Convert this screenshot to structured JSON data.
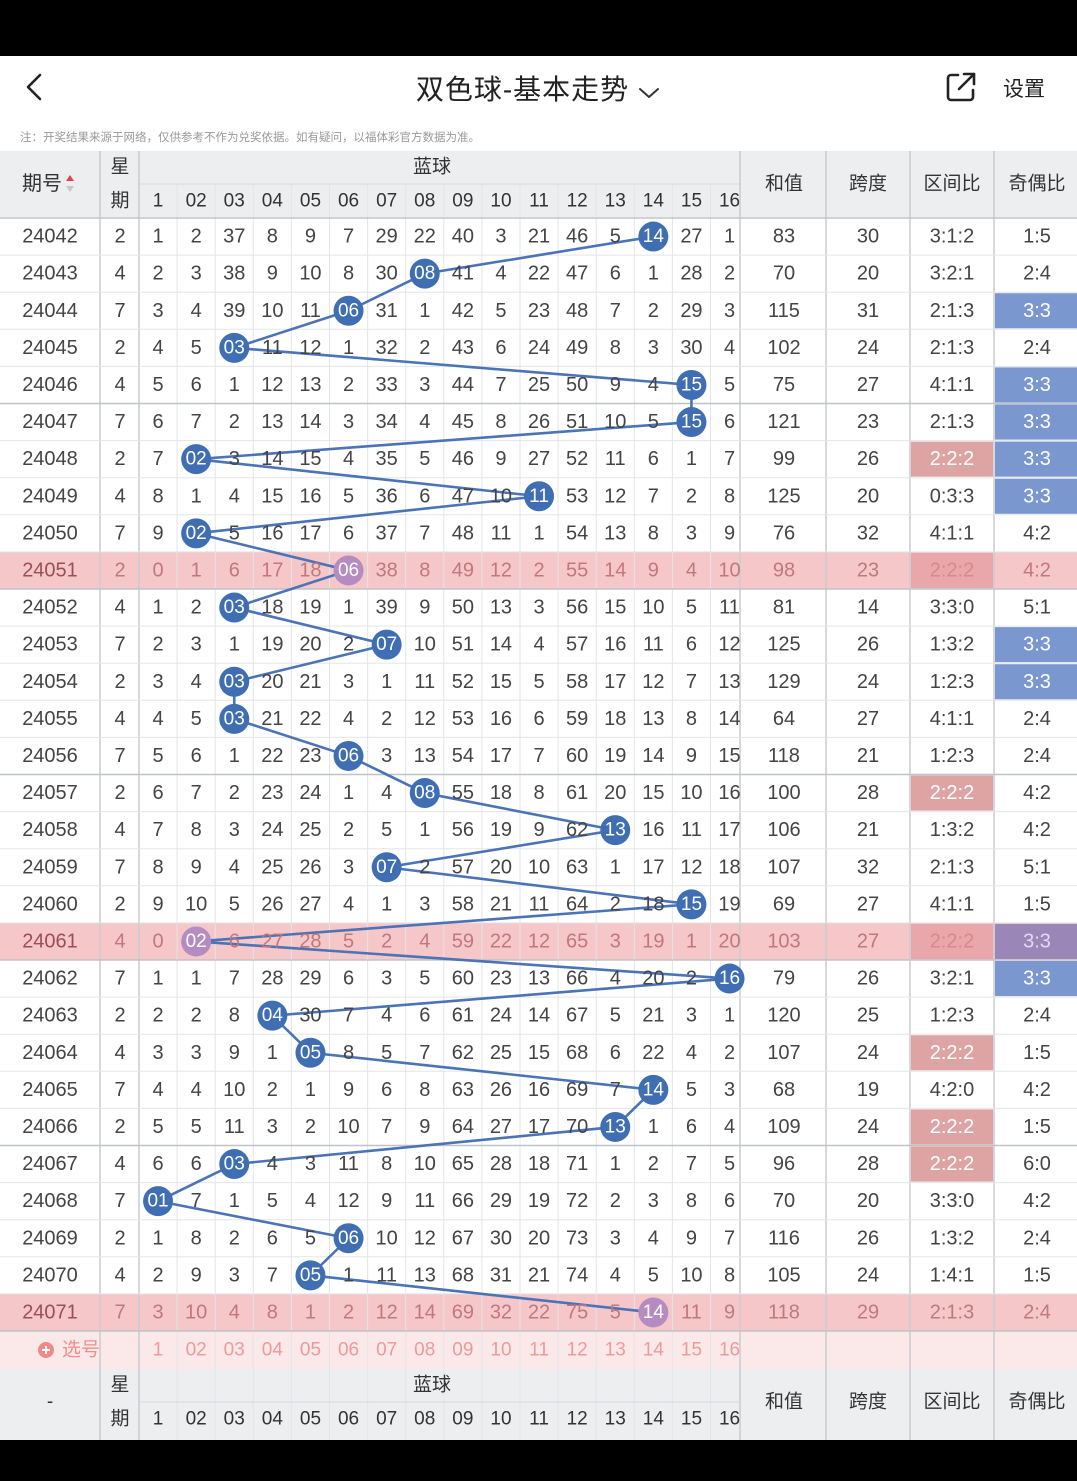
{
  "nav": {
    "title": "双色球-基本走势",
    "settings_label": "设置"
  },
  "note": "注：开奖结果来源于网络，仅供参考不作为兑奖依据。如有疑问，以福体彩官方数据为准。",
  "header": {
    "period": "期号",
    "week_top": "星",
    "week_bottom": "期",
    "blue_title": "蓝球",
    "sum": "和值",
    "span": "跨度",
    "zone": "区间比",
    "oddeven": "奇偶比",
    "nums": [
      "1",
      "02",
      "03",
      "04",
      "05",
      "06",
      "07",
      "08",
      "09",
      "10",
      "11",
      "12",
      "13",
      "14",
      "15",
      "16"
    ]
  },
  "footer_header": {
    "period": "-",
    "week_top": "星",
    "week_bottom": "期",
    "blue_title": "蓝球",
    "sum": "和值",
    "span": "跨度",
    "zone": "区间比",
    "oddeven": "奇偶比"
  },
  "select_label": "选号",
  "select_nums": [
    "1",
    "02",
    "03",
    "04",
    "05",
    "06",
    "07",
    "08",
    "09",
    "10",
    "11",
    "12",
    "13",
    "14",
    "15",
    "16"
  ],
  "colors": {
    "ball": "#3f6eb3",
    "line": "#4a73b8",
    "highlight_row": "#f5c7c9",
    "zone_red": "#dea3a3",
    "oe_blue": "#7b97cf"
  },
  "rows": [
    {
      "p": "24042",
      "w": "2",
      "blue": 14,
      "cells": [
        "1",
        "2",
        "37",
        "8",
        "9",
        "7",
        "29",
        "22",
        "40",
        "3",
        "21",
        "46",
        "5",
        "",
        "27",
        "1"
      ],
      "sum": "83",
      "span": "30",
      "zone": "3:1:2",
      "oe": "1:5"
    },
    {
      "p": "24043",
      "w": "4",
      "blue": 8,
      "cells": [
        "2",
        "3",
        "38",
        "9",
        "10",
        "8",
        "30",
        "",
        "41",
        "4",
        "22",
        "47",
        "6",
        "1",
        "28",
        "2"
      ],
      "sum": "70",
      "span": "20",
      "zone": "3:2:1",
      "oe": "2:4"
    },
    {
      "p": "24044",
      "w": "7",
      "blue": 6,
      "cells": [
        "3",
        "4",
        "39",
        "10",
        "11",
        "",
        "31",
        "1",
        "42",
        "5",
        "23",
        "48",
        "7",
        "2",
        "29",
        "3"
      ],
      "sum": "115",
      "span": "31",
      "zone": "2:1:3",
      "oe": "3:3",
      "oeh": true
    },
    {
      "p": "24045",
      "w": "2",
      "blue": 3,
      "cells": [
        "4",
        "5",
        "",
        "11",
        "12",
        "1",
        "32",
        "2",
        "43",
        "6",
        "24",
        "49",
        "8",
        "3",
        "30",
        "4"
      ],
      "sum": "102",
      "span": "24",
      "zone": "2:1:3",
      "oe": "2:4"
    },
    {
      "p": "24046",
      "w": "4",
      "blue": 15,
      "cells": [
        "5",
        "6",
        "1",
        "12",
        "13",
        "2",
        "33",
        "3",
        "44",
        "7",
        "25",
        "50",
        "9",
        "4",
        "",
        "5"
      ],
      "sum": "75",
      "span": "27",
      "zone": "4:1:1",
      "oe": "3:3",
      "oeh": true
    },
    {
      "p": "24047",
      "w": "7",
      "blue": 15,
      "cells": [
        "6",
        "7",
        "2",
        "13",
        "14",
        "3",
        "34",
        "4",
        "45",
        "8",
        "26",
        "51",
        "10",
        "5",
        "",
        "6"
      ],
      "sum": "121",
      "span": "23",
      "zone": "2:1:3",
      "oe": "3:3",
      "oeh": true
    },
    {
      "p": "24048",
      "w": "2",
      "blue": 2,
      "cells": [
        "7",
        "",
        "3",
        "14",
        "15",
        "4",
        "35",
        "5",
        "46",
        "9",
        "27",
        "52",
        "11",
        "6",
        "1",
        "7"
      ],
      "sum": "99",
      "span": "26",
      "zone": "2:2:2",
      "oe": "3:3",
      "zh": true,
      "oeh": true
    },
    {
      "p": "24049",
      "w": "4",
      "blue": 11,
      "cells": [
        "8",
        "1",
        "4",
        "15",
        "16",
        "5",
        "36",
        "6",
        "47",
        "10",
        "",
        "53",
        "12",
        "7",
        "2",
        "8"
      ],
      "sum": "125",
      "span": "20",
      "zone": "0:3:3",
      "oe": "3:3",
      "oeh": true
    },
    {
      "p": "24050",
      "w": "7",
      "blue": 2,
      "cells": [
        "9",
        "",
        "5",
        "16",
        "17",
        "6",
        "37",
        "7",
        "48",
        "11",
        "1",
        "54",
        "13",
        "8",
        "3",
        "9"
      ],
      "sum": "76",
      "span": "32",
      "zone": "4:1:1",
      "oe": "4:2"
    },
    {
      "p": "24051",
      "w": "2",
      "blue": 6,
      "cells": [
        "0",
        "1",
        "6",
        "17",
        "18",
        "",
        "38",
        "8",
        "49",
        "12",
        "2",
        "55",
        "14",
        "9",
        "4",
        "10"
      ],
      "sum": "98",
      "span": "23",
      "zone": "2:2:2",
      "oe": "4:2",
      "hl": true,
      "zh": true
    },
    {
      "p": "24052",
      "w": "4",
      "blue": 3,
      "cells": [
        "1",
        "2",
        "",
        "18",
        "19",
        "1",
        "39",
        "9",
        "50",
        "13",
        "3",
        "56",
        "15",
        "10",
        "5",
        "11"
      ],
      "sum": "81",
      "span": "14",
      "zone": "3:3:0",
      "oe": "5:1"
    },
    {
      "p": "24053",
      "w": "7",
      "blue": 7,
      "cells": [
        "2",
        "3",
        "1",
        "19",
        "20",
        "2",
        "",
        "10",
        "51",
        "14",
        "4",
        "57",
        "16",
        "11",
        "6",
        "12"
      ],
      "sum": "125",
      "span": "26",
      "zone": "1:3:2",
      "oe": "3:3",
      "oeh": true
    },
    {
      "p": "24054",
      "w": "2",
      "blue": 3,
      "cells": [
        "3",
        "4",
        "",
        "20",
        "21",
        "3",
        "1",
        "11",
        "52",
        "15",
        "5",
        "58",
        "17",
        "12",
        "7",
        "13"
      ],
      "sum": "129",
      "span": "24",
      "zone": "1:2:3",
      "oe": "3:3",
      "oeh": true
    },
    {
      "p": "24055",
      "w": "4",
      "blue": 3,
      "cells": [
        "4",
        "5",
        "",
        "21",
        "22",
        "4",
        "2",
        "12",
        "53",
        "16",
        "6",
        "59",
        "18",
        "13",
        "8",
        "14"
      ],
      "sum": "64",
      "span": "27",
      "zone": "4:1:1",
      "oe": "2:4"
    },
    {
      "p": "24056",
      "w": "7",
      "blue": 6,
      "cells": [
        "5",
        "6",
        "1",
        "22",
        "23",
        "",
        "3",
        "13",
        "54",
        "17",
        "7",
        "60",
        "19",
        "14",
        "9",
        "15"
      ],
      "sum": "118",
      "span": "21",
      "zone": "1:2:3",
      "oe": "2:4"
    },
    {
      "p": "24057",
      "w": "2",
      "blue": 8,
      "cells": [
        "6",
        "7",
        "2",
        "23",
        "24",
        "1",
        "4",
        "",
        "55",
        "18",
        "8",
        "61",
        "20",
        "15",
        "10",
        "16"
      ],
      "sum": "100",
      "span": "28",
      "zone": "2:2:2",
      "oe": "4:2",
      "zh": true
    },
    {
      "p": "24058",
      "w": "4",
      "blue": 13,
      "cells": [
        "7",
        "8",
        "3",
        "24",
        "25",
        "2",
        "5",
        "1",
        "56",
        "19",
        "9",
        "62",
        "",
        "16",
        "11",
        "17"
      ],
      "sum": "106",
      "span": "21",
      "zone": "1:3:2",
      "oe": "4:2"
    },
    {
      "p": "24059",
      "w": "7",
      "blue": 7,
      "cells": [
        "8",
        "9",
        "4",
        "25",
        "26",
        "3",
        "",
        "2",
        "57",
        "20",
        "10",
        "63",
        "1",
        "17",
        "12",
        "18"
      ],
      "sum": "107",
      "span": "32",
      "zone": "2:1:3",
      "oe": "5:1"
    },
    {
      "p": "24060",
      "w": "2",
      "blue": 15,
      "cells": [
        "9",
        "10",
        "5",
        "26",
        "27",
        "4",
        "1",
        "3",
        "58",
        "21",
        "11",
        "64",
        "2",
        "18",
        "",
        "19"
      ],
      "sum": "69",
      "span": "27",
      "zone": "4:1:1",
      "oe": "1:5"
    },
    {
      "p": "24061",
      "w": "4",
      "blue": 2,
      "cells": [
        "0",
        "",
        "6",
        "27",
        "28",
        "5",
        "2",
        "4",
        "59",
        "22",
        "12",
        "65",
        "3",
        "19",
        "1",
        "20"
      ],
      "sum": "103",
      "span": "27",
      "zone": "2:2:2",
      "oe": "3:3",
      "hl": true,
      "zh": true,
      "oeh": true
    },
    {
      "p": "24062",
      "w": "7",
      "blue": 16,
      "cells": [
        "1",
        "1",
        "7",
        "28",
        "29",
        "6",
        "3",
        "5",
        "60",
        "23",
        "13",
        "66",
        "4",
        "20",
        "2",
        ""
      ],
      "sum": "79",
      "span": "26",
      "zone": "3:2:1",
      "oe": "3:3",
      "oeh": true
    },
    {
      "p": "24063",
      "w": "2",
      "blue": 4,
      "cells": [
        "2",
        "2",
        "8",
        "",
        "30",
        "7",
        "4",
        "6",
        "61",
        "24",
        "14",
        "67",
        "5",
        "21",
        "3",
        "1"
      ],
      "sum": "120",
      "span": "25",
      "zone": "1:2:3",
      "oe": "2:4"
    },
    {
      "p": "24064",
      "w": "4",
      "blue": 5,
      "cells": [
        "3",
        "3",
        "9",
        "1",
        "",
        "8",
        "5",
        "7",
        "62",
        "25",
        "15",
        "68",
        "6",
        "22",
        "4",
        "2"
      ],
      "sum": "107",
      "span": "24",
      "zone": "2:2:2",
      "oe": "1:5",
      "zh": true
    },
    {
      "p": "24065",
      "w": "7",
      "blue": 14,
      "cells": [
        "4",
        "4",
        "10",
        "2",
        "1",
        "9",
        "6",
        "8",
        "63",
        "26",
        "16",
        "69",
        "7",
        "",
        "5",
        "3"
      ],
      "sum": "68",
      "span": "19",
      "zone": "4:2:0",
      "oe": "4:2"
    },
    {
      "p": "24066",
      "w": "2",
      "blue": 13,
      "cells": [
        "5",
        "5",
        "11",
        "3",
        "2",
        "10",
        "7",
        "9",
        "64",
        "27",
        "17",
        "70",
        "",
        "1",
        "6",
        "4"
      ],
      "sum": "109",
      "span": "24",
      "zone": "2:2:2",
      "oe": "1:5",
      "zh": true
    },
    {
      "p": "24067",
      "w": "4",
      "blue": 3,
      "cells": [
        "6",
        "6",
        "",
        "4",
        "3",
        "11",
        "8",
        "10",
        "65",
        "28",
        "18",
        "71",
        "1",
        "2",
        "7",
        "5"
      ],
      "sum": "96",
      "span": "28",
      "zone": "2:2:2",
      "oe": "6:0",
      "zh": true
    },
    {
      "p": "24068",
      "w": "7",
      "blue": 1,
      "cells": [
        "",
        "7",
        "1",
        "5",
        "4",
        "12",
        "9",
        "11",
        "66",
        "29",
        "19",
        "72",
        "2",
        "3",
        "8",
        "6"
      ],
      "sum": "70",
      "span": "20",
      "zone": "3:3:0",
      "oe": "4:2"
    },
    {
      "p": "24069",
      "w": "2",
      "blue": 6,
      "cells": [
        "1",
        "8",
        "2",
        "6",
        "5",
        "",
        "10",
        "12",
        "67",
        "30",
        "20",
        "73",
        "3",
        "4",
        "9",
        "7"
      ],
      "sum": "116",
      "span": "26",
      "zone": "1:3:2",
      "oe": "2:4"
    },
    {
      "p": "24070",
      "w": "4",
      "blue": 5,
      "cells": [
        "2",
        "9",
        "3",
        "7",
        "",
        "1",
        "11",
        "13",
        "68",
        "31",
        "21",
        "74",
        "4",
        "5",
        "10",
        "8"
      ],
      "sum": "105",
      "span": "24",
      "zone": "1:4:1",
      "oe": "1:5"
    },
    {
      "p": "24071",
      "w": "7",
      "blue": 14,
      "cells": [
        "3",
        "10",
        "4",
        "8",
        "1",
        "2",
        "12",
        "14",
        "69",
        "32",
        "22",
        "75",
        "5",
        "",
        "11",
        "9"
      ],
      "sum": "118",
      "span": "29",
      "zone": "2:1:3",
      "oe": "2:4",
      "hl": true
    }
  ]
}
